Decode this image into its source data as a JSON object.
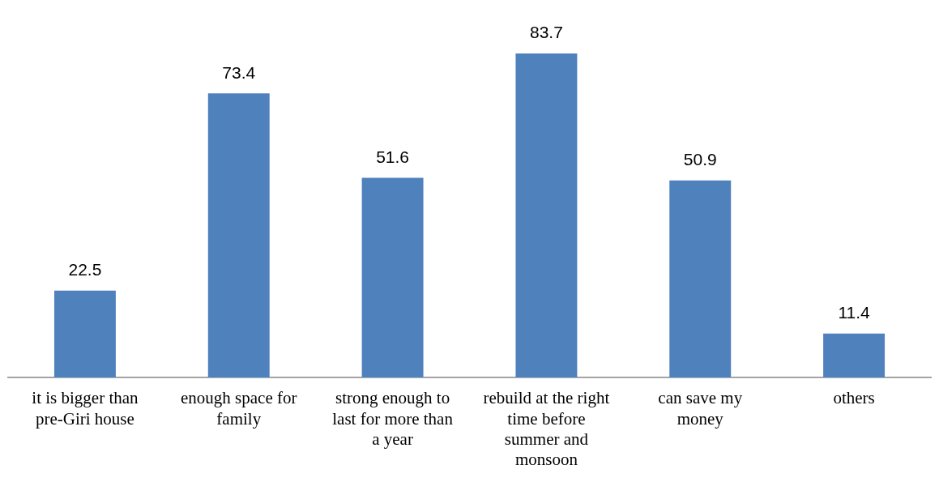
{
  "chart_data": {
    "type": "bar",
    "categories": [
      "it is bigger than pre-Giri house",
      "enough space for family",
      "strong enough to last for more than a year",
      "rebuild at the right time before summer and monsoon",
      "can save my money",
      "others"
    ],
    "values": [
      22.5,
      73.4,
      51.6,
      83.7,
      50.9,
      11.4
    ],
    "color": "#4f81bd",
    "data_labels": true,
    "grid": false,
    "legend": false
  }
}
